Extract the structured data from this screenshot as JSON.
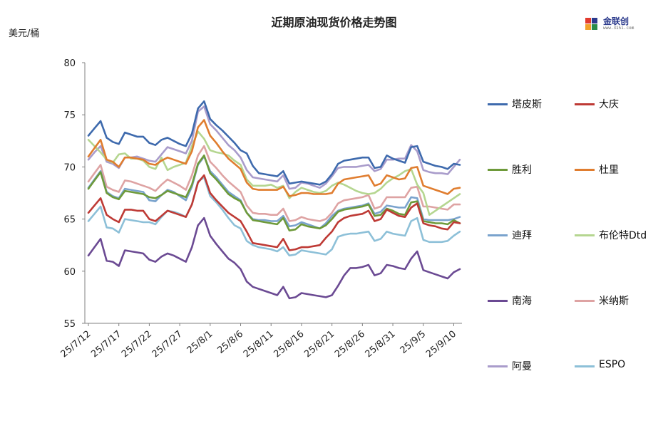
{
  "chart_data": {
    "type": "line",
    "title": "近期原油现货价格走势图",
    "ylabel": "美元/桶",
    "xlabel": "",
    "ylim": [
      55,
      80
    ],
    "yticks": [
      55,
      60,
      65,
      70,
      75,
      80
    ],
    "x": [
      "25/7/12",
      "25/7/13",
      "25/7/14",
      "25/7/15",
      "25/7/16",
      "25/7/17",
      "25/7/18",
      "25/7/19",
      "25/7/20",
      "25/7/21",
      "25/7/22",
      "25/7/23",
      "25/7/24",
      "25/7/25",
      "25/7/26",
      "25/7/27",
      "25/7/28",
      "25/7/29",
      "25/7/30",
      "25/7/31",
      "25/8/1",
      "25/8/2",
      "25/8/3",
      "25/8/4",
      "25/8/5",
      "25/8/6",
      "25/8/7",
      "25/8/8",
      "25/8/9",
      "25/8/10",
      "25/8/11",
      "25/8/12",
      "25/8/13",
      "25/8/14",
      "25/8/15",
      "25/8/16",
      "25/8/17",
      "25/8/18",
      "25/8/19",
      "25/8/20",
      "25/8/21",
      "25/8/22",
      "25/8/23",
      "25/8/24",
      "25/8/25",
      "25/8/26",
      "25/8/27",
      "25/8/28",
      "25/8/29",
      "25/8/30",
      "25/8/31",
      "25/9/1",
      "25/9/2",
      "25/9/3",
      "25/9/4",
      "25/9/5",
      "25/9/6",
      "25/9/7",
      "25/9/8",
      "25/9/9",
      "25/9/10",
      "25/9/11"
    ],
    "xtick_labels": [
      "25/7/12",
      "25/7/17",
      "25/7/22",
      "25/7/27",
      "25/8/1",
      "25/8/6",
      "25/8/11",
      "25/8/16",
      "25/8/21",
      "25/8/26",
      "25/8/31",
      "25/9/5",
      "25/9/10"
    ],
    "series": [
      {
        "name": "塔皮斯",
        "color": "#3e6aad",
        "values": [
          73.0,
          73.7,
          74.4,
          72.8,
          72.4,
          72.2,
          73.3,
          73.1,
          72.9,
          72.9,
          72.3,
          72.1,
          72.6,
          72.8,
          72.5,
          72.2,
          72.0,
          73.2,
          75.6,
          76.3,
          74.6,
          74.0,
          73.5,
          72.9,
          72.3,
          71.6,
          71.3,
          70.1,
          69.4,
          69.3,
          69.2,
          69.1,
          69.6,
          68.4,
          68.5,
          68.6,
          68.5,
          68.4,
          68.3,
          68.6,
          69.3,
          70.3,
          70.6,
          70.7,
          70.8,
          70.9,
          70.9,
          69.9,
          70.0,
          71.1,
          70.8,
          70.6,
          70.4,
          71.9,
          72.0,
          70.5,
          70.3,
          70.1,
          70.0,
          69.8,
          70.3,
          70.2
        ]
      },
      {
        "name": "大庆",
        "color": "#be3a35",
        "values": [
          65.6,
          66.3,
          67.0,
          65.4,
          65.0,
          64.7,
          65.9,
          65.9,
          65.8,
          65.8,
          65.0,
          64.8,
          65.3,
          65.8,
          65.6,
          65.4,
          65.2,
          66.4,
          68.5,
          69.2,
          67.5,
          66.8,
          66.2,
          65.6,
          65.2,
          64.8,
          63.8,
          62.7,
          62.6,
          62.5,
          62.4,
          62.3,
          63.1,
          62.0,
          62.1,
          62.3,
          62.3,
          62.4,
          62.5,
          63.2,
          63.8,
          64.7,
          65.1,
          65.3,
          65.4,
          65.5,
          65.8,
          64.8,
          65.0,
          65.9,
          65.6,
          65.3,
          65.2,
          66.1,
          66.5,
          64.6,
          64.4,
          64.3,
          64.1,
          64.0,
          64.7,
          64.6
        ]
      },
      {
        "name": "胜利",
        "color": "#6e9a3a",
        "values": [
          67.9,
          68.7,
          69.5,
          67.5,
          67.1,
          66.9,
          67.7,
          67.6,
          67.5,
          67.4,
          67.1,
          67.0,
          67.3,
          67.7,
          67.5,
          67.3,
          67.1,
          68.3,
          70.3,
          71.1,
          69.4,
          68.8,
          68.1,
          67.4,
          67.0,
          66.7,
          65.6,
          64.9,
          64.8,
          64.7,
          64.6,
          64.5,
          65.1,
          63.9,
          64.0,
          64.5,
          64.3,
          64.2,
          64.1,
          64.4,
          65.0,
          65.7,
          65.9,
          66.0,
          66.1,
          66.2,
          66.4,
          65.3,
          65.4,
          66.0,
          65.8,
          65.5,
          65.4,
          66.6,
          66.7,
          64.8,
          64.7,
          64.6,
          64.6,
          64.5,
          64.9,
          64.6
        ]
      },
      {
        "name": "杜里",
        "color": "#e07d2f",
        "values": [
          71.0,
          71.8,
          72.6,
          70.7,
          70.5,
          70.0,
          70.9,
          70.9,
          70.8,
          70.7,
          70.3,
          70.2,
          70.6,
          70.9,
          70.7,
          70.5,
          70.3,
          71.5,
          73.8,
          74.5,
          73.0,
          72.3,
          71.5,
          70.8,
          70.3,
          69.8,
          68.5,
          67.9,
          67.8,
          67.8,
          67.8,
          67.8,
          68.1,
          67.2,
          67.3,
          67.5,
          67.5,
          67.4,
          67.4,
          67.4,
          67.5,
          68.4,
          68.8,
          68.9,
          69.0,
          69.1,
          69.2,
          68.2,
          68.4,
          69.2,
          69.0,
          68.8,
          68.9,
          69.9,
          70.0,
          68.2,
          68.0,
          67.8,
          67.6,
          67.4,
          67.9,
          68.0
        ]
      },
      {
        "name": "迪拜",
        "color": "#7aa3cd",
        "values": [
          68.0,
          68.8,
          69.6,
          67.6,
          67.2,
          67.0,
          67.9,
          67.8,
          67.7,
          67.6,
          66.8,
          66.7,
          67.3,
          67.8,
          67.6,
          67.2,
          66.8,
          68.1,
          70.2,
          71.0,
          69.6,
          69.0,
          68.3,
          67.6,
          67.2,
          66.8,
          65.6,
          65.0,
          64.9,
          64.9,
          64.8,
          64.8,
          65.3,
          64.3,
          64.4,
          64.7,
          64.5,
          64.3,
          64.1,
          64.6,
          65.3,
          65.8,
          66.0,
          66.1,
          66.2,
          66.3,
          66.5,
          65.5,
          65.7,
          66.3,
          66.2,
          66.1,
          66.1,
          67.1,
          67.0,
          65.0,
          64.9,
          64.9,
          64.9,
          64.9,
          65.0,
          65.2
        ]
      },
      {
        "name": "布伦特Dtd",
        "color": "#b5d690",
        "values": [
          72.6,
          72.0,
          71.4,
          70.7,
          70.4,
          71.2,
          71.3,
          70.8,
          70.8,
          70.6,
          70.0,
          69.8,
          70.9,
          69.7,
          70.0,
          70.2,
          70.4,
          72.0,
          73.4,
          72.7,
          71.6,
          71.4,
          71.3,
          71.1,
          70.6,
          70.2,
          68.8,
          68.2,
          68.2,
          68.2,
          68.3,
          68.0,
          68.2,
          67.0,
          67.6,
          68.0,
          67.8,
          67.6,
          67.5,
          67.7,
          68.2,
          68.5,
          68.3,
          68.0,
          67.7,
          67.5,
          67.4,
          67.5,
          67.9,
          68.5,
          68.9,
          69.2,
          69.6,
          69.8,
          68.3,
          67.5,
          65.4,
          65.8,
          66.2,
          66.6,
          67.0,
          67.4
        ]
      },
      {
        "name": "南海",
        "color": "#6b4a93",
        "values": [
          61.5,
          62.3,
          63.1,
          61.0,
          60.9,
          60.5,
          62.0,
          61.9,
          61.8,
          61.7,
          61.1,
          60.9,
          61.4,
          61.7,
          61.5,
          61.2,
          60.9,
          62.3,
          64.4,
          65.1,
          63.4,
          62.6,
          61.9,
          61.2,
          60.8,
          60.2,
          59.0,
          58.5,
          58.3,
          58.1,
          57.9,
          57.7,
          58.5,
          57.4,
          57.5,
          57.9,
          57.8,
          57.7,
          57.6,
          57.5,
          57.7,
          58.6,
          59.6,
          60.3,
          60.3,
          60.4,
          60.6,
          59.6,
          59.8,
          60.6,
          60.5,
          60.3,
          60.2,
          61.2,
          61.9,
          60.1,
          59.9,
          59.7,
          59.5,
          59.3,
          59.9,
          60.2
        ]
      },
      {
        "name": "米纳斯",
        "color": "#dea3a3",
        "values": [
          68.6,
          69.4,
          70.2,
          68.1,
          67.8,
          67.6,
          68.7,
          68.6,
          68.4,
          68.2,
          68.0,
          67.7,
          68.3,
          68.8,
          68.5,
          68.2,
          67.8,
          69.2,
          71.1,
          72.0,
          70.5,
          69.9,
          69.2,
          68.6,
          68.1,
          67.6,
          66.3,
          65.6,
          65.5,
          65.5,
          65.4,
          65.4,
          66.0,
          64.8,
          64.9,
          65.2,
          65.0,
          64.9,
          64.8,
          65.0,
          65.6,
          66.5,
          66.8,
          66.9,
          67.0,
          67.1,
          67.3,
          66.0,
          66.2,
          67.1,
          67.1,
          67.1,
          67.1,
          68.0,
          68.1,
          66.2,
          66.2,
          66.1,
          66.0,
          65.9,
          66.4,
          66.4
        ]
      },
      {
        "name": "阿曼",
        "color": "#a99ccb",
        "values": [
          70.7,
          71.4,
          72.0,
          70.5,
          70.3,
          69.9,
          70.9,
          70.9,
          71.0,
          70.8,
          70.6,
          70.5,
          71.2,
          71.9,
          71.7,
          71.5,
          71.3,
          72.5,
          75.3,
          75.8,
          74.1,
          73.5,
          72.8,
          72.1,
          71.6,
          70.9,
          69.7,
          69.0,
          68.9,
          68.8,
          68.7,
          68.6,
          69.2,
          67.9,
          68.0,
          68.5,
          68.4,
          68.2,
          68.0,
          68.4,
          69.1,
          69.9,
          70.0,
          70.0,
          70.0,
          70.1,
          70.2,
          69.6,
          69.8,
          70.7,
          70.7,
          70.8,
          70.8,
          72.1,
          71.5,
          69.7,
          69.5,
          69.4,
          69.4,
          69.3,
          70.0,
          70.7
        ]
      },
      {
        "name": "ESPO",
        "color": "#8dc0d8",
        "values": [
          64.8,
          65.5,
          66.2,
          64.2,
          64.1,
          63.7,
          65.0,
          64.9,
          64.8,
          64.7,
          64.7,
          64.5,
          65.2,
          65.8,
          65.7,
          65.5,
          65.2,
          66.4,
          68.6,
          69.0,
          67.2,
          66.6,
          65.9,
          65.1,
          64.4,
          64.1,
          62.9,
          62.5,
          62.3,
          62.2,
          62.1,
          61.9,
          62.3,
          61.5,
          61.6,
          62.0,
          61.9,
          61.8,
          61.7,
          61.6,
          62.1,
          63.3,
          63.5,
          63.6,
          63.6,
          63.7,
          63.8,
          62.9,
          63.1,
          63.8,
          63.6,
          63.5,
          63.4,
          64.8,
          65.1,
          63.0,
          62.8,
          62.8,
          62.8,
          62.9,
          63.4,
          63.8
        ]
      }
    ]
  }
}
